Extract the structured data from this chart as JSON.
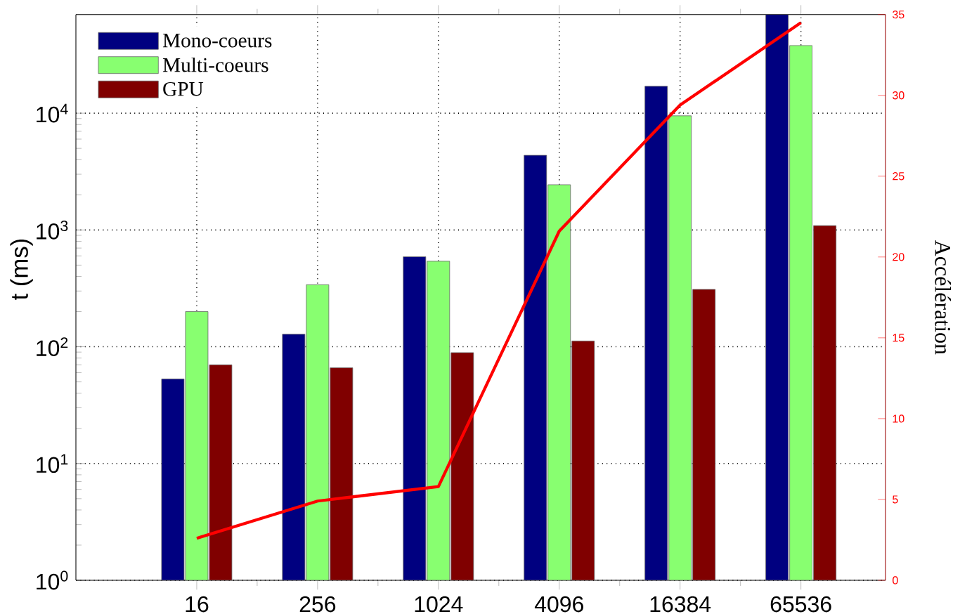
{
  "chart_data": {
    "type": "bar",
    "ylabel": "t (ms)",
    "y2label": "Accélération",
    "categories": [
      "16",
      "256",
      "1024",
      "4096",
      "16384",
      "65536"
    ],
    "series": [
      {
        "name": "Mono-coeurs",
        "color": "#000080",
        "values": [
          53,
          128,
          590,
          4360,
          17000,
          70000
        ]
      },
      {
        "name": "Multi-coeurs",
        "color": "#88ff70",
        "values": [
          200,
          340,
          540,
          2440,
          9500,
          38000
        ]
      },
      {
        "name": "GPU",
        "color": "#800000",
        "values": [
          70,
          66,
          89,
          112,
          310,
          1090
        ]
      },
      {
        "type": "line",
        "axis": "y2",
        "color": "#ff0000",
        "values": [
          2.6,
          4.9,
          5.8,
          21.6,
          29.4,
          34.5
        ]
      }
    ],
    "log": "y",
    "ylim": [
      1,
      70000
    ],
    "yticks": [
      {
        "value": 1,
        "label": "10$^{0}$"
      },
      {
        "value": 10,
        "label": "10$^{1}$"
      },
      {
        "value": 100,
        "label": "10$^{2}$"
      },
      {
        "value": 1000,
        "label": "10$^{3}$"
      },
      {
        "value": 10000,
        "label": "10$^{4}$"
      }
    ],
    "y2lim": [
      0,
      35
    ],
    "y2ticks": [
      0,
      5,
      10,
      15,
      20,
      25,
      30,
      35
    ],
    "grid": true,
    "legend": "top left"
  }
}
